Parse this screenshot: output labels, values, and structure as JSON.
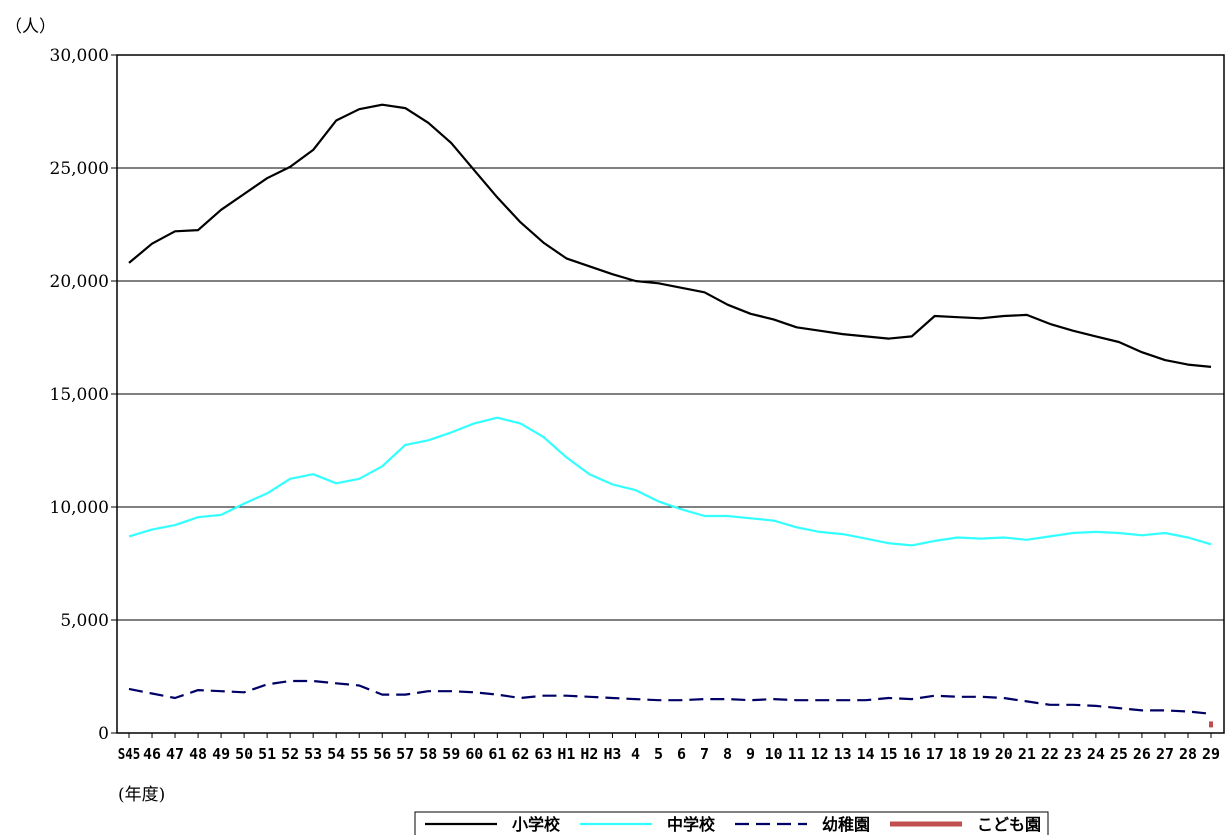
{
  "chart_data": {
    "type": "line",
    "y_unit_label": "（人）",
    "x_unit_label": "(年度)",
    "categories": [
      "S45",
      "46",
      "47",
      "48",
      "49",
      "50",
      "51",
      "52",
      "53",
      "54",
      "55",
      "56",
      "57",
      "58",
      "59",
      "60",
      "61",
      "62",
      "63",
      "H1",
      "H2",
      "H3",
      "4",
      "5",
      "6",
      "7",
      "8",
      "9",
      "10",
      "11",
      "12",
      "13",
      "14",
      "15",
      "16",
      "17",
      "18",
      "19",
      "20",
      "21",
      "22",
      "23",
      "24",
      "25",
      "26",
      "27",
      "28",
      "29"
    ],
    "ylim": [
      0,
      30000
    ],
    "yticks": [
      0,
      5000,
      10000,
      15000,
      20000,
      25000,
      30000
    ],
    "ytick_labels": [
      "0",
      "5,000",
      "10,000",
      "15,000",
      "20,000",
      "25,000",
      "30,000"
    ],
    "grid": true,
    "legend_position": "bottom",
    "series": [
      {
        "name": "小学校",
        "color": "#000000",
        "dash": "solid",
        "width": 2.2,
        "values": [
          20800,
          21650,
          22200,
          22250,
          23150,
          23850,
          24550,
          25050,
          25800,
          27100,
          27600,
          27800,
          27650,
          27000,
          26100,
          24900,
          23700,
          22600,
          21700,
          21000,
          20650,
          20300,
          20000,
          19900,
          19700,
          19500,
          18950,
          18550,
          18300,
          17950,
          17800,
          17650,
          17550,
          17450,
          17550,
          18450,
          18400,
          18350,
          18450,
          18500,
          18100,
          17800,
          17550,
          17300,
          16850,
          16500,
          16300,
          16200
        ]
      },
      {
        "name": "中学校",
        "color": "#33ffff",
        "dash": "solid",
        "width": 2.2,
        "values": [
          8700,
          9000,
          9200,
          9550,
          9650,
          10150,
          10600,
          11250,
          11450,
          11050,
          11250,
          11800,
          12750,
          12950,
          13300,
          13700,
          13950,
          13700,
          13100,
          12200,
          11450,
          11000,
          10750,
          10250,
          9900,
          9600,
          9600,
          9500,
          9400,
          9100,
          8900,
          8800,
          8600,
          8400,
          8300,
          8500,
          8650,
          8600,
          8650,
          8550,
          8700,
          8850,
          8900,
          8850,
          8750,
          8850,
          8650,
          8350
        ]
      },
      {
        "name": "幼稚園",
        "color": "#000066",
        "dash": "long-dash",
        "width": 2.2,
        "values": [
          1950,
          1750,
          1550,
          1900,
          1850,
          1800,
          2150,
          2300,
          2300,
          2200,
          2100,
          1700,
          1700,
          1850,
          1850,
          1800,
          1700,
          1550,
          1650,
          1650,
          1600,
          1550,
          1500,
          1450,
          1450,
          1500,
          1500,
          1450,
          1500,
          1450,
          1450,
          1450,
          1450,
          1550,
          1500,
          1650,
          1600,
          1600,
          1550,
          1400,
          1250,
          1250,
          1200,
          1100,
          1000,
          1000,
          950,
          850
        ]
      },
      {
        "name": "こども園",
        "color": "#c0504d",
        "dash": "solid",
        "width": 5,
        "values": [
          null,
          null,
          null,
          null,
          null,
          null,
          null,
          null,
          null,
          null,
          null,
          null,
          null,
          null,
          null,
          null,
          null,
          null,
          null,
          null,
          null,
          null,
          null,
          null,
          null,
          null,
          null,
          null,
          null,
          null,
          null,
          null,
          null,
          null,
          null,
          null,
          null,
          null,
          null,
          null,
          null,
          null,
          null,
          null,
          null,
          null,
          null,
          380
        ]
      }
    ]
  }
}
